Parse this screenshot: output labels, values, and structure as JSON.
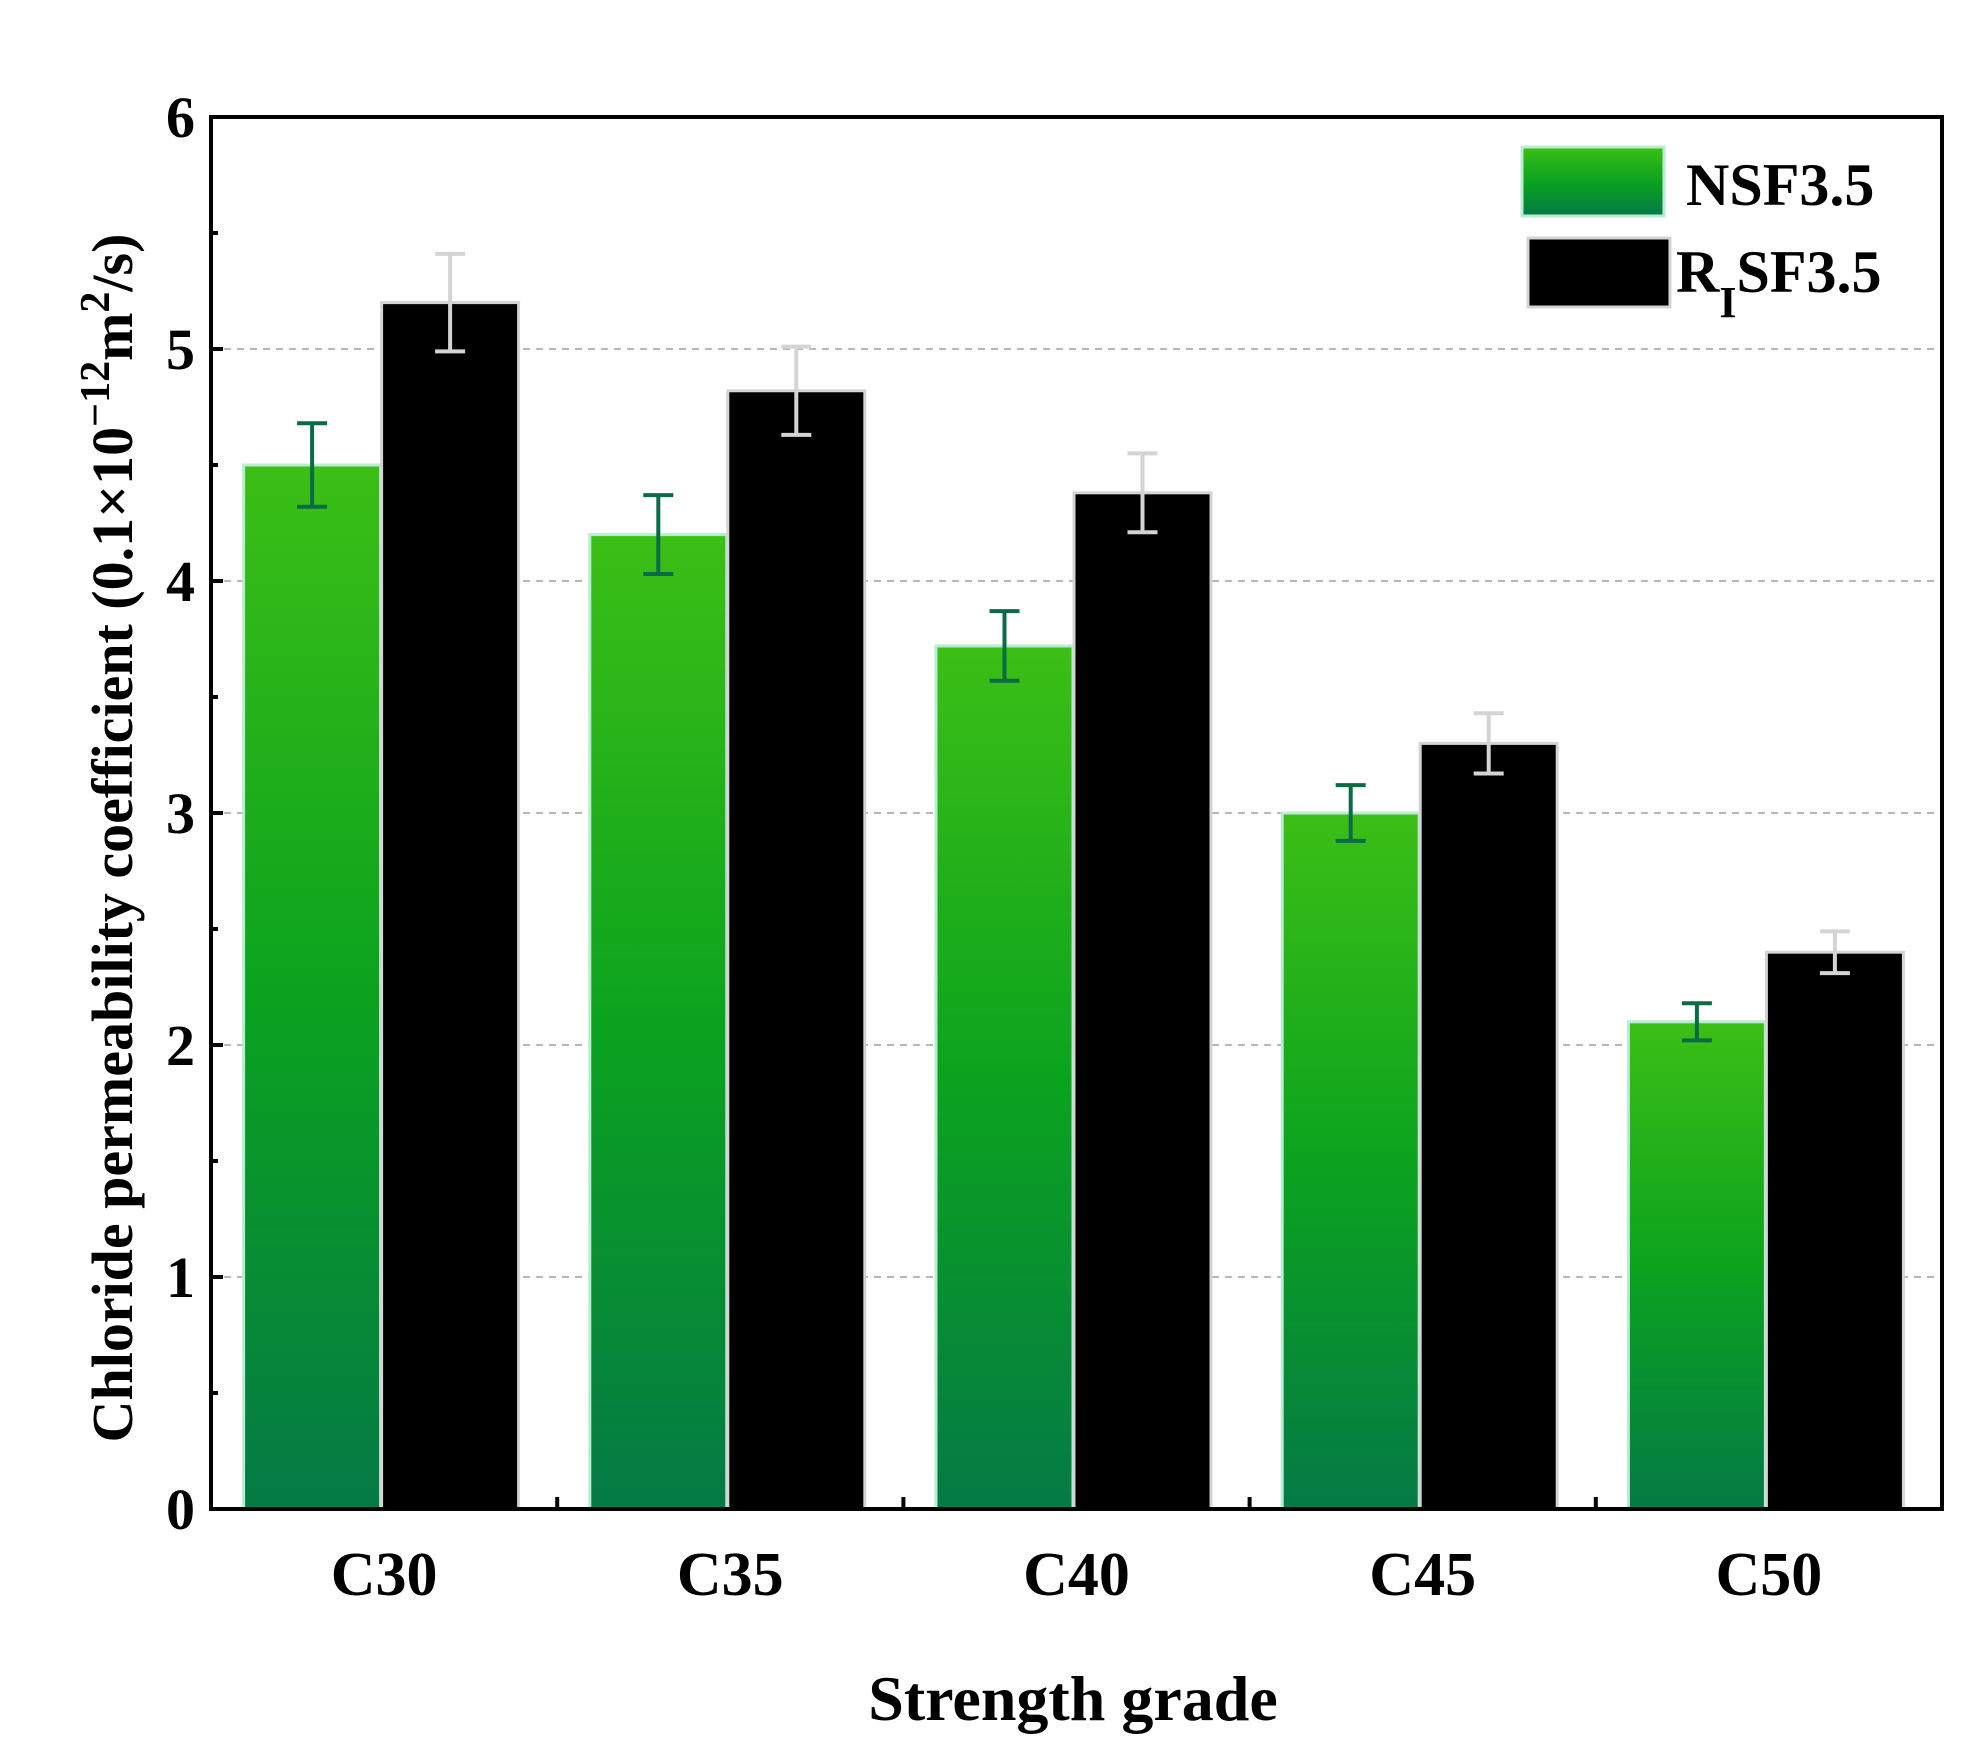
{
  "chart_data": {
    "type": "bar",
    "xlabel": "Strength grade",
    "ylabel": "Chloride permeability coefficient  (0.1×10",
    "ylabel_sup1": "−12",
    "ylabel_mid": "m",
    "ylabel_sup2": "2",
    "ylabel_end": "/s)",
    "categories": [
      "C30",
      "C35",
      "C40",
      "C45",
      "C50"
    ],
    "ylim": [
      0,
      6
    ],
    "yticks": [
      "0",
      "1",
      "2",
      "3",
      "4",
      "5",
      "6"
    ],
    "grid": "horizontal-dashed",
    "legend_position": "top-right",
    "series": [
      {
        "name": "NSF3.5",
        "values": [
          4.5,
          4.2,
          3.72,
          3.0,
          2.1
        ],
        "errors": [
          0.18,
          0.17,
          0.15,
          0.12,
          0.08
        ],
        "color_top": "#3cbf16",
        "color_mid": "#0ba31e",
        "color_bottom": "#047a46",
        "error_color": "#0a6b46"
      },
      {
        "name": "R",
        "name_sub": "I",
        "name_rest": "SF3.5",
        "values": [
          5.2,
          4.82,
          4.38,
          3.3,
          2.4
        ],
        "errors": [
          0.21,
          0.19,
          0.17,
          0.13,
          0.09
        ],
        "color_top": "#000000",
        "color_mid": "#000000",
        "color_bottom": "#000000",
        "error_color": "#d4d4d4"
      }
    ]
  }
}
